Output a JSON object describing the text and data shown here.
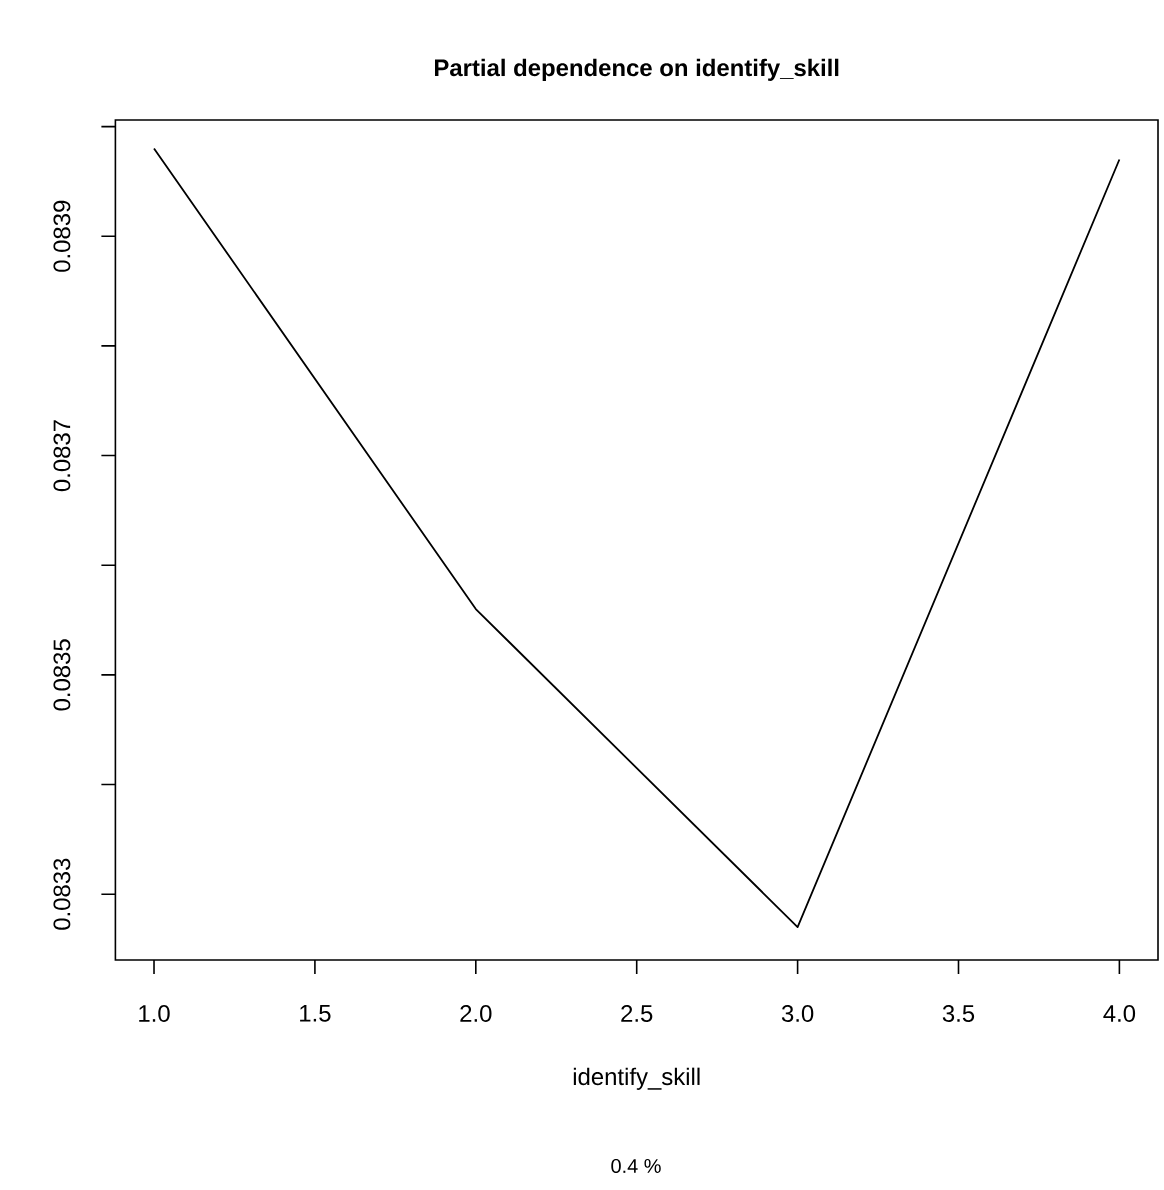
{
  "chart_data": {
    "type": "line",
    "title": "Partial dependence on identify_skill",
    "xlabel": "identify_skill",
    "annotations": [
      "0.4 %"
    ],
    "x": [
      1.0,
      2.0,
      3.0,
      4.0
    ],
    "values": [
      0.08398,
      0.08356,
      0.08327,
      0.08397
    ],
    "color": "#000000",
    "marker": "none",
    "line_style": "solid",
    "xlim": [
      0.88,
      4.12
    ],
    "xticks": [
      {
        "value": 1.0,
        "label": "1.0"
      },
      {
        "value": 1.5,
        "label": "1.5"
      },
      {
        "value": 2.0,
        "label": "2.0"
      },
      {
        "value": 2.5,
        "label": "2.5"
      },
      {
        "value": 3.0,
        "label": "3.0"
      },
      {
        "value": 3.5,
        "label": "3.5"
      },
      {
        "value": 4.0,
        "label": "4.0"
      }
    ],
    "ylim": [
      0.08324,
      0.084006
    ],
    "yticks": [
      0.0833,
      {
        "value": 0.0834,
        "label": null
      },
      0.0835,
      {
        "value": 0.0836,
        "label": null
      },
      0.0837,
      {
        "value": 0.0838,
        "label": null
      },
      0.0839,
      {
        "value": 0.084,
        "label": null
      }
    ]
  }
}
